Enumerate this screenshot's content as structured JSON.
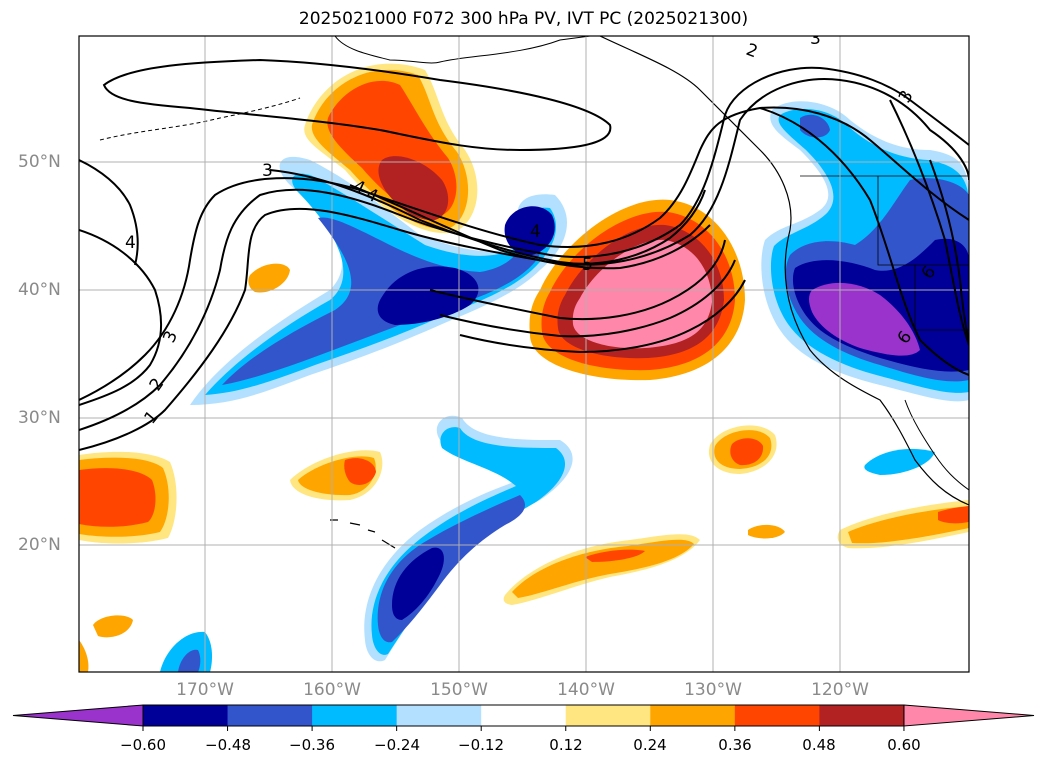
{
  "title": "2025021000 F072 300 hPa PV, IVT PC (2025021300)",
  "lat_labels": [
    "50°N",
    "40°N",
    "30°N",
    "20°N"
  ],
  "lon_labels": [
    "170°W",
    "160°W",
    "150°W",
    "140°W",
    "130°W",
    "120°W"
  ],
  "contour_labels": [
    "1",
    "2",
    "3",
    "4",
    "3",
    "4",
    "4",
    "5",
    "4",
    "2",
    "3",
    "3",
    "6",
    "6"
  ],
  "colorbar": {
    "ticks": [
      "−0.60",
      "−0.48",
      "−0.36",
      "−0.24",
      "−0.12",
      "0.12",
      "0.24",
      "0.36",
      "0.48",
      "0.60"
    ],
    "colors": [
      "#9933cc",
      "#000099",
      "#3355cc",
      "#00bbff",
      "#b3e0ff",
      "#ffffff",
      "#ffe680",
      "#ffa500",
      "#ff4500",
      "#b22222",
      "#ff88aa"
    ]
  },
  "palette": {
    "purple": "#9933cc",
    "navy": "#000099",
    "royal": "#3355cc",
    "cyan": "#00bbff",
    "sky": "#b3e0ff",
    "yellow": "#ffe680",
    "orange": "#ffa500",
    "redorange": "#ff4500",
    "firebrick": "#b22222",
    "pink": "#ff88aa"
  }
}
